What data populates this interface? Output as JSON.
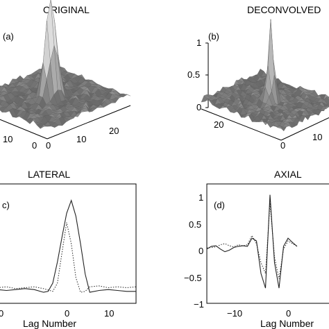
{
  "chart_data": [
    {
      "type": "surface",
      "panel_label": "(a)",
      "title": "ORIGINAL",
      "x_tick_labels": [
        "0",
        "10",
        "20"
      ],
      "y_tick_labels": [
        "10",
        "0"
      ],
      "z_tick_labels": [],
      "peak_height": 1.0,
      "colormap": "gray"
    },
    {
      "type": "surface",
      "panel_label": "(b)",
      "title": "DECONVOLVED",
      "x_tick_labels": [
        "0",
        "10"
      ],
      "y_tick_labels": [
        "20"
      ],
      "z_tick_labels": [
        "1",
        "0.5",
        "0"
      ],
      "zlim": [
        0,
        1
      ],
      "peak_height": 0.95,
      "colormap": "gray"
    },
    {
      "type": "line",
      "panel_label": "c)",
      "title": "LATERAL",
      "xlabel": "Lag Number",
      "x_tick_labels": [
        "0",
        "10"
      ],
      "xlim": [
        -15,
        15
      ],
      "ylim": [
        -0.1,
        1.2
      ],
      "series": [
        {
          "style": "solid",
          "x": [
            -15,
            -13,
            -11,
            -9,
            -7,
            -5,
            -4,
            -3,
            -2,
            -1,
            0,
            1,
            2,
            3,
            4,
            5,
            7,
            9,
            11,
            13,
            15
          ],
          "values": [
            0.05,
            0.04,
            0.05,
            0.06,
            0.05,
            0.02,
            0.03,
            0.12,
            0.35,
            0.62,
            0.88,
            1.02,
            0.85,
            0.55,
            0.22,
            0.02,
            0.04,
            0.05,
            0.04,
            0.03,
            0.03
          ]
        },
        {
          "style": "dotted",
          "x": [
            -15,
            -13,
            -11,
            -9,
            -7,
            -5,
            -3,
            -2,
            -1,
            0,
            1,
            2,
            3,
            4,
            5,
            7,
            9,
            11,
            13,
            15
          ],
          "values": [
            0.07,
            0.08,
            0.06,
            0.07,
            0.08,
            0.06,
            0.03,
            0.12,
            0.45,
            0.78,
            0.55,
            0.18,
            0.02,
            0.03,
            0.08,
            0.09,
            0.07,
            0.08,
            0.07,
            0.08
          ]
        }
      ]
    },
    {
      "type": "line",
      "panel_label": "(d)",
      "title": "AXIAL",
      "xlabel": "Lag Number",
      "x_tick_labels": [
        "−10",
        "0"
      ],
      "y_tick_labels": [
        "1",
        "0.5",
        "0",
        "−0.5",
        "−1"
      ],
      "xlim": [
        -14,
        14
      ],
      "ylim": [
        -1,
        1.2
      ],
      "series": [
        {
          "style": "solid",
          "x": [
            -14,
            -13,
            -12,
            -11,
            -10,
            -9,
            -8,
            -7,
            -6,
            -5,
            -4,
            -3,
            -2,
            -1,
            0,
            1,
            2,
            3,
            4,
            5,
            6
          ],
          "values": [
            0,
            0.05,
            0.06,
            0.0,
            -0.05,
            -0.02,
            0.03,
            0.05,
            0.06,
            0.05,
            0.2,
            0.15,
            -0.45,
            -0.72,
            1.0,
            -0.25,
            -0.72,
            0.05,
            0.2,
            0.12,
            0.05
          ]
        },
        {
          "style": "dotted",
          "x": [
            -14,
            -13,
            -12,
            -11,
            -10,
            -9,
            -8,
            -7,
            -6,
            -5,
            -4,
            -3,
            -2,
            -1,
            0,
            1,
            2,
            3,
            4,
            5,
            6
          ],
          "values": [
            0.02,
            0.03,
            0.04,
            0.08,
            0.1,
            0.06,
            0.04,
            0.08,
            0.06,
            0.08,
            0.25,
            0.1,
            -0.25,
            -0.45,
            0.85,
            -0.15,
            -0.55,
            0.0,
            0.15,
            0.1,
            0.05
          ]
        }
      ]
    }
  ]
}
